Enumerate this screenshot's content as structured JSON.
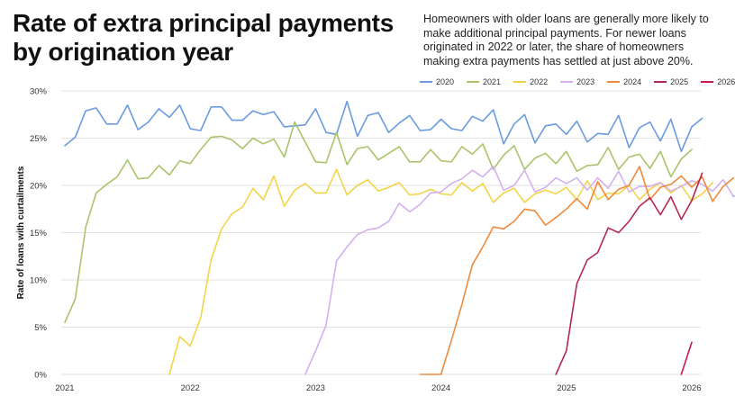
{
  "title": "Rate of extra principal payments by origination year",
  "subtitle": "Homeowners with older loans are generally more likely to make additional principal payments. For newer loans originated in 2022 or later, the share of homeowners making extra payments has settled at just above 20%.",
  "chart_data": {
    "type": "line",
    "title": "Rate of extra principal payments by origination year",
    "ylabel": "Rate of loans with curtailments",
    "xlabel": "",
    "xlim": [
      2021.0,
      2026.0
    ],
    "ylim": [
      0,
      30
    ],
    "y_ticks": [
      "0%",
      "5%",
      "10%",
      "15%",
      "20%",
      "25%",
      "30%"
    ],
    "y_tick_values": [
      0,
      5,
      10,
      15,
      20,
      25,
      30
    ],
    "x_ticks": [
      "2021",
      "2022",
      "2023",
      "2024",
      "2025",
      "2026"
    ],
    "x_tick_values": [
      2021,
      2022,
      2023,
      2024,
      2025,
      2026
    ],
    "grid": "horizontal",
    "legend_position": "top-right",
    "series": [
      {
        "name": "2020",
        "color": "#6a9be0",
        "start": 2021.0,
        "values": [
          24.2,
          25.1,
          27.9,
          28.2,
          26.5,
          26.5,
          28.5,
          25.9,
          26.7,
          28.1,
          27.2,
          28.5,
          26.0,
          25.8,
          28.3,
          28.3,
          26.9,
          26.9,
          27.9,
          27.5,
          27.8,
          26.2,
          26.3,
          26.4,
          28.1,
          25.6,
          25.4,
          28.9,
          25.2,
          27.4,
          27.7,
          25.6,
          26.6,
          27.4,
          25.8,
          25.9,
          27.0,
          26.0,
          25.8,
          27.3,
          26.8,
          28.0,
          24.4,
          26.5,
          27.5,
          24.5,
          26.3,
          26.5,
          25.4,
          26.8,
          24.6,
          25.5,
          25.4,
          27.4,
          24.0,
          26.1,
          26.7,
          24.7,
          27.0,
          23.6,
          26.2,
          27.1
        ]
      },
      {
        "name": "2021",
        "color": "#a9c46a",
        "start": 2021.0,
        "values": [
          5.5,
          8.0,
          15.6,
          19.2,
          20.1,
          20.9,
          22.7,
          20.7,
          20.8,
          22.1,
          21.1,
          22.6,
          22.3,
          23.8,
          25.1,
          25.2,
          24.8,
          23.9,
          25.0,
          24.4,
          24.9,
          23.0,
          26.7,
          24.6,
          22.5,
          22.4,
          25.6,
          22.2,
          23.9,
          24.1,
          22.7,
          23.4,
          24.1,
          22.5,
          22.5,
          23.8,
          22.6,
          22.5,
          24.1,
          23.3,
          24.4,
          21.7,
          23.2,
          24.2,
          21.7,
          22.9,
          23.4,
          22.3,
          23.6,
          21.5,
          22.1,
          22.2,
          24.0,
          21.7,
          23.0,
          23.3,
          21.8,
          23.6,
          20.9,
          22.8,
          23.8
        ]
      },
      {
        "name": "2022",
        "color": "#f3d447",
        "start": 2021.833,
        "values": [
          0,
          4.0,
          3.0,
          6.0,
          12.1,
          15.4,
          17.0,
          17.7,
          19.7,
          18.5,
          21.0,
          17.8,
          19.5,
          20.2,
          19.2,
          19.2,
          21.7,
          19.0,
          20.0,
          20.6,
          19.4,
          19.8,
          20.3,
          19.0,
          19.1,
          19.6,
          19.1,
          19.0,
          20.3,
          19.4,
          20.2,
          18.2,
          19.2,
          19.7,
          18.2,
          19.1,
          19.5,
          19.1,
          19.8,
          18.5,
          20.5,
          18.5,
          19.2,
          19.1,
          20.0,
          18.5,
          19.6,
          20.3,
          19.2,
          20.0,
          18.4,
          19.1,
          20.3
        ]
      },
      {
        "name": "2023",
        "color": "#d4b0ee",
        "start": 2022.917,
        "values": [
          0,
          2.5,
          5.2,
          12.0,
          13.5,
          14.8,
          15.3,
          15.5,
          16.2,
          18.1,
          17.2,
          18.0,
          19.2,
          19.3,
          20.2,
          20.7,
          21.6,
          20.9,
          22.0,
          19.5,
          20.0,
          21.6,
          19.3,
          19.8,
          20.8,
          20.2,
          20.8,
          19.5,
          20.8,
          19.7,
          21.5,
          19.3,
          19.9,
          19.9,
          20.3,
          19.4,
          19.9,
          20.5,
          20.1,
          19.4,
          20.6,
          18.8,
          19.7,
          20.8
        ]
      },
      {
        "name": "2024",
        "color": "#f08a3c",
        "start": 2023.833,
        "values": [
          0,
          0,
          0,
          3.6,
          7.4,
          11.6,
          13.5,
          15.6,
          15.4,
          16.2,
          17.5,
          17.3,
          15.8,
          16.6,
          17.5,
          18.6,
          17.5,
          20.4,
          18.5,
          19.6,
          20.0,
          22.0,
          18.5,
          19.8,
          20.1,
          21.0,
          19.8,
          20.9,
          18.3,
          19.9,
          20.8
        ]
      },
      {
        "name": "2025",
        "color": "#b5284e",
        "start": 2024.917,
        "values": [
          0,
          2.5,
          9.6,
          12.1,
          12.9,
          15.5,
          15.0,
          16.2,
          17.8,
          18.7,
          16.9,
          18.8,
          16.4,
          18.4,
          21.3
        ]
      },
      {
        "name": "2026",
        "color": "#c8184e",
        "start": 2025.917,
        "values": [
          0,
          3.4
        ]
      }
    ]
  }
}
